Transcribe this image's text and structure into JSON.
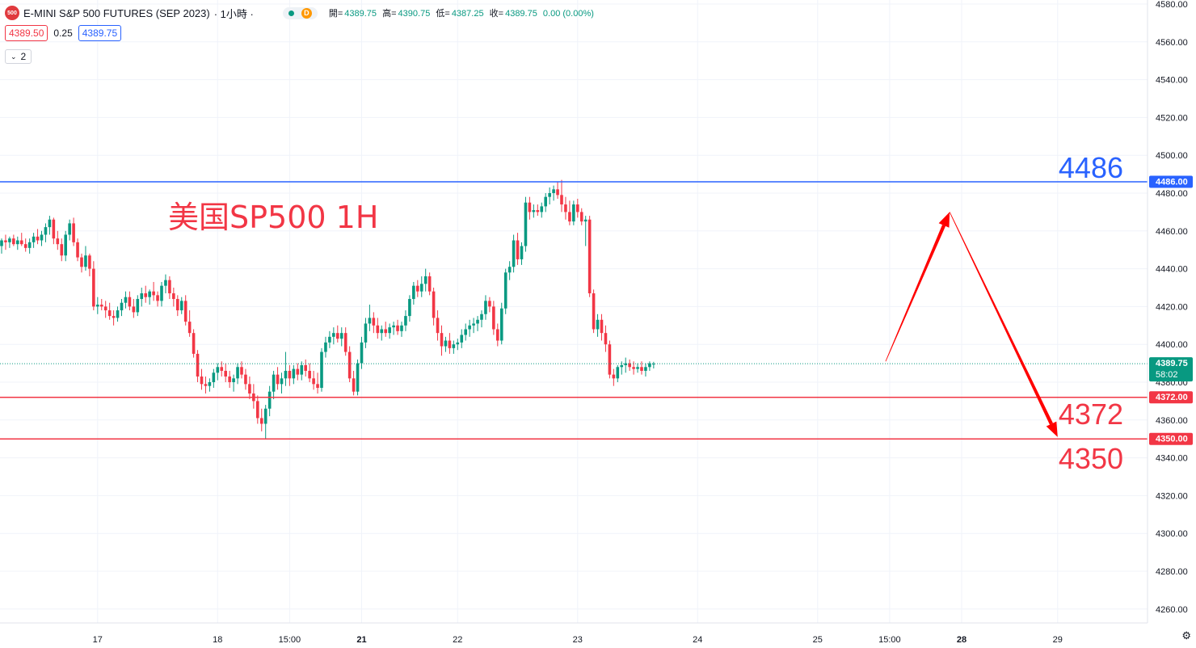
{
  "header": {
    "symbol_logo": "500",
    "title": "E-MINI S&P 500 FUTURES (SEP 2023)",
    "interval": "· 1小時 ·",
    "delay_icon_letter": "D",
    "ohlc": [
      {
        "label": "開=",
        "value": "4389.75"
      },
      {
        "label": "高=",
        "value": "4390.75"
      },
      {
        "label": "低=",
        "value": "4387.25"
      },
      {
        "label": "收=",
        "value": "4389.75"
      }
    ],
    "change": "0.00 (0.00%)",
    "bid": "4389.50",
    "spread": "0.25",
    "ask": "4389.75",
    "indicator_toggle": "2"
  },
  "colors": {
    "up": "#089981",
    "down": "#f23645",
    "resistance_line": "#2962ff",
    "support_line": "#f23645",
    "projection_arrow": "#ff0000",
    "annotation_title": "#f23645"
  },
  "annotations": {
    "title": "美国SP500 1H",
    "level_high": "4486",
    "level_mid": "4372",
    "level_low": "4350"
  },
  "chart_data": {
    "type": "candlestick",
    "interval": "1H",
    "y_axis": {
      "ylim": [
        4250,
        4580
      ],
      "ticks": [
        "4580.00",
        "4560.00",
        "4540.00",
        "4520.00",
        "4500.00",
        "4480.00",
        "4460.00",
        "4440.00",
        "4420.00",
        "4400.00",
        "4380.00",
        "4360.00",
        "4340.00",
        "4320.00",
        "4300.00",
        "4280.00",
        "4260.00"
      ],
      "position": "right"
    },
    "x_axis": {
      "ticks": [
        {
          "label": "17",
          "bar": 24,
          "bold": false
        },
        {
          "label": "18",
          "bar": 54,
          "bold": false
        },
        {
          "label": "15:00",
          "bar": 72,
          "bold": false
        },
        {
          "label": "21",
          "bar": 90,
          "bold": true
        },
        {
          "label": "22",
          "bar": 114,
          "bold": false
        },
        {
          "label": "23",
          "bar": 144,
          "bold": false
        },
        {
          "label": "24",
          "bar": 174,
          "bold": false
        },
        {
          "label": "25",
          "bar": 204,
          "bold": false
        },
        {
          "label": "15:00",
          "bar": 222,
          "bold": false
        },
        {
          "label": "28",
          "bar": 240,
          "bold": true
        },
        {
          "label": "29",
          "bar": 264,
          "bold": false
        }
      ]
    },
    "current_price": {
      "value": 4389.75,
      "label": "4389.75",
      "countdown": "58:02"
    },
    "horizontal_lines": [
      {
        "value": 4486,
        "label": "4486.00",
        "color": "#2962ff"
      },
      {
        "value": 4372,
        "label": "4372.00",
        "color": "#f23645"
      },
      {
        "value": 4350,
        "label": "4350.00",
        "color": "#f23645"
      }
    ],
    "projection": [
      {
        "bar": 221,
        "price": 4391
      },
      {
        "bar": 237,
        "price": 4470
      },
      {
        "bar": 264,
        "price": 4351
      }
    ],
    "candles": [
      [
        4452,
        4456,
        4448,
        4455
      ],
      [
        4455,
        4458,
        4450,
        4454
      ],
      [
        4454,
        4457,
        4451,
        4456
      ],
      [
        4456,
        4458,
        4452,
        4453
      ],
      [
        4453,
        4457,
        4450,
        4455
      ],
      [
        4455,
        4459,
        4452,
        4453
      ],
      [
        4453,
        4456,
        4449,
        4451
      ],
      [
        4451,
        4456,
        4448,
        4454
      ],
      [
        4454,
        4459,
        4451,
        4457
      ],
      [
        4457,
        4461,
        4453,
        4455
      ],
      [
        4455,
        4460,
        4452,
        4458
      ],
      [
        4458,
        4464,
        4454,
        4462
      ],
      [
        4462,
        4468,
        4458,
        4466
      ],
      [
        4466,
        4467,
        4453,
        4456
      ],
      [
        4456,
        4460,
        4450,
        4453
      ],
      [
        4453,
        4456,
        4444,
        4447
      ],
      [
        4447,
        4460,
        4444,
        4458
      ],
      [
        4458,
        4466,
        4455,
        4464
      ],
      [
        4464,
        4467,
        4452,
        4454
      ],
      [
        4454,
        4456,
        4444,
        4446
      ],
      [
        4446,
        4448,
        4438,
        4441
      ],
      [
        4441,
        4452,
        4439,
        4447
      ],
      [
        4447,
        4448,
        4436,
        4440
      ],
      [
        4440,
        4444,
        4418,
        4420
      ],
      [
        4420,
        4425,
        4416,
        4421
      ],
      [
        4421,
        4424,
        4418,
        4420
      ],
      [
        4420,
        4423,
        4414,
        4418
      ],
      [
        4418,
        4422,
        4413,
        4415
      ],
      [
        4415,
        4418,
        4410,
        4414
      ],
      [
        4414,
        4420,
        4412,
        4418
      ],
      [
        4418,
        4424,
        4415,
        4422
      ],
      [
        4422,
        4428,
        4419,
        4425
      ],
      [
        4425,
        4428,
        4418,
        4420
      ],
      [
        4420,
        4424,
        4414,
        4417
      ],
      [
        4417,
        4426,
        4415,
        4424
      ],
      [
        4424,
        4430,
        4420,
        4427
      ],
      [
        4427,
        4431,
        4422,
        4425
      ],
      [
        4425,
        4429,
        4421,
        4428
      ],
      [
        4428,
        4433,
        4423,
        4426
      ],
      [
        4426,
        4428,
        4420,
        4423
      ],
      [
        4423,
        4433,
        4420,
        4431
      ],
      [
        4431,
        4437,
        4427,
        4434
      ],
      [
        4434,
        4436,
        4424,
        4427
      ],
      [
        4427,
        4430,
        4420,
        4424
      ],
      [
        4424,
        4426,
        4415,
        4418
      ],
      [
        4418,
        4425,
        4416,
        4423
      ],
      [
        4423,
        4426,
        4410,
        4412
      ],
      [
        4412,
        4418,
        4404,
        4406
      ],
      [
        4406,
        4408,
        4393,
        4395
      ],
      [
        4395,
        4397,
        4380,
        4383
      ],
      [
        4383,
        4387,
        4376,
        4379
      ],
      [
        4379,
        4383,
        4374,
        4378
      ],
      [
        4378,
        4382,
        4375,
        4380
      ],
      [
        4380,
        4387,
        4377,
        4385
      ],
      [
        4385,
        4390,
        4381,
        4388
      ],
      [
        4388,
        4391,
        4383,
        4386
      ],
      [
        4386,
        4390,
        4380,
        4383
      ],
      [
        4383,
        4386,
        4377,
        4380
      ],
      [
        4380,
        4384,
        4375,
        4382
      ],
      [
        4382,
        4390,
        4379,
        4388
      ],
      [
        4388,
        4391,
        4382,
        4384
      ],
      [
        4384,
        4387,
        4376,
        4379
      ],
      [
        4379,
        4383,
        4371,
        4374
      ],
      [
        4374,
        4379,
        4366,
        4370
      ],
      [
        4370,
        4373,
        4358,
        4361
      ],
      [
        4361,
        4366,
        4354,
        4358
      ],
      [
        4358,
        4368,
        4350,
        4366
      ],
      [
        4366,
        4378,
        4362,
        4375
      ],
      [
        4375,
        4386,
        4371,
        4384
      ],
      [
        4384,
        4388,
        4376,
        4379
      ],
      [
        4379,
        4385,
        4374,
        4382
      ],
      [
        4382,
        4396,
        4378,
        4386
      ],
      [
        4386,
        4389,
        4378,
        4382
      ],
      [
        4382,
        4389,
        4379,
        4387
      ],
      [
        4387,
        4390,
        4381,
        4384
      ],
      [
        4384,
        4391,
        4381,
        4389
      ],
      [
        4389,
        4392,
        4383,
        4386
      ],
      [
        4386,
        4390,
        4380,
        4382
      ],
      [
        4382,
        4386,
        4376,
        4379
      ],
      [
        4379,
        4385,
        4374,
        4377
      ],
      [
        4377,
        4398,
        4375,
        4396
      ],
      [
        4396,
        4404,
        4393,
        4401
      ],
      [
        4401,
        4407,
        4398,
        4404
      ],
      [
        4404,
        4409,
        4400,
        4406
      ],
      [
        4406,
        4410,
        4401,
        4403
      ],
      [
        4403,
        4409,
        4399,
        4406
      ],
      [
        4406,
        4409,
        4394,
        4396
      ],
      [
        4396,
        4399,
        4380,
        4382
      ],
      [
        4382,
        4386,
        4373,
        4375
      ],
      [
        4375,
        4392,
        4373,
        4390
      ],
      [
        4390,
        4404,
        4387,
        4401
      ],
      [
        4401,
        4414,
        4398,
        4411
      ],
      [
        4411,
        4421,
        4407,
        4414
      ],
      [
        4414,
        4417,
        4406,
        4410
      ],
      [
        4410,
        4414,
        4403,
        4406
      ],
      [
        4406,
        4410,
        4402,
        4408
      ],
      [
        4408,
        4412,
        4404,
        4406
      ],
      [
        4406,
        4411,
        4403,
        4409
      ],
      [
        4409,
        4412,
        4405,
        4410
      ],
      [
        4410,
        4413,
        4405,
        4407
      ],
      [
        4407,
        4412,
        4404,
        4410
      ],
      [
        4410,
        4418,
        4407,
        4415
      ],
      [
        4415,
        4426,
        4412,
        4424
      ],
      [
        4424,
        4433,
        4421,
        4431
      ],
      [
        4431,
        4434,
        4425,
        4428
      ],
      [
        4428,
        4436,
        4425,
        4432
      ],
      [
        4432,
        4440,
        4428,
        4436
      ],
      [
        4436,
        4438,
        4426,
        4428
      ],
      [
        4428,
        4430,
        4410,
        4414
      ],
      [
        4414,
        4418,
        4402,
        4406
      ],
      [
        4406,
        4410,
        4394,
        4399
      ],
      [
        4399,
        4404,
        4396,
        4402
      ],
      [
        4402,
        4406,
        4395,
        4398
      ],
      [
        4398,
        4402,
        4395,
        4400
      ],
      [
        4400,
        4403,
        4397,
        4401
      ],
      [
        4401,
        4408,
        4398,
        4405
      ],
      [
        4405,
        4411,
        4402,
        4408
      ],
      [
        4408,
        4413,
        4404,
        4410
      ],
      [
        4410,
        4414,
        4406,
        4411
      ],
      [
        4411,
        4415,
        4407,
        4413
      ],
      [
        4413,
        4418,
        4409,
        4416
      ],
      [
        4416,
        4426,
        4413,
        4423
      ],
      [
        4423,
        4425,
        4417,
        4420
      ],
      [
        4420,
        4423,
        4405,
        4408
      ],
      [
        4408,
        4411,
        4399,
        4402
      ],
      [
        4402,
        4422,
        4400,
        4419
      ],
      [
        4419,
        4440,
        4416,
        4438
      ],
      [
        4438,
        4444,
        4434,
        4441
      ],
      [
        4441,
        4458,
        4438,
        4455
      ],
      [
        4455,
        4459,
        4442,
        4445
      ],
      [
        4445,
        4454,
        4442,
        4452
      ],
      [
        4452,
        4478,
        4449,
        4475
      ],
      [
        4475,
        4478,
        4466,
        4470
      ],
      [
        4470,
        4474,
        4467,
        4471
      ],
      [
        4471,
        4474,
        4468,
        4470
      ],
      [
        4470,
        4475,
        4467,
        4473
      ],
      [
        4473,
        4480,
        4470,
        4478
      ],
      [
        4478,
        4483,
        4474,
        4480
      ],
      [
        4480,
        4484,
        4476,
        4482
      ],
      [
        4482,
        4486,
        4477,
        4479
      ],
      [
        4479,
        4487,
        4470,
        4474
      ],
      [
        4474,
        4478,
        4466,
        4470
      ],
      [
        4470,
        4476,
        4463,
        4465
      ],
      [
        4465,
        4476,
        4463,
        4474
      ],
      [
        4474,
        4477,
        4467,
        4470
      ],
      [
        4470,
        4472,
        4463,
        4465
      ],
      [
        4465,
        4468,
        4452,
        4466
      ],
      [
        4466,
        4468,
        4425,
        4427
      ],
      [
        4427,
        4429,
        4406,
        4408
      ],
      [
        4408,
        4416,
        4404,
        4413
      ],
      [
        4413,
        4416,
        4402,
        4406
      ],
      [
        4406,
        4410,
        4396,
        4400
      ],
      [
        4400,
        4402,
        4382,
        4384
      ],
      [
        4384,
        4387,
        4378,
        4382
      ],
      [
        4382,
        4389,
        4380,
        4388
      ],
      [
        4388,
        4391,
        4384,
        4389
      ],
      [
        4389,
        4393,
        4385,
        4390
      ],
      [
        4390,
        4392,
        4386,
        4388
      ],
      [
        4388,
        4391,
        4384,
        4387
      ],
      [
        4387,
        4390,
        4385,
        4388
      ],
      [
        4388,
        4391,
        4384,
        4386
      ],
      [
        4386,
        4390,
        4383,
        4388
      ],
      [
        4388,
        4391,
        4386,
        4390
      ],
      [
        4389.75,
        4390.75,
        4387.25,
        4389.75
      ]
    ]
  }
}
